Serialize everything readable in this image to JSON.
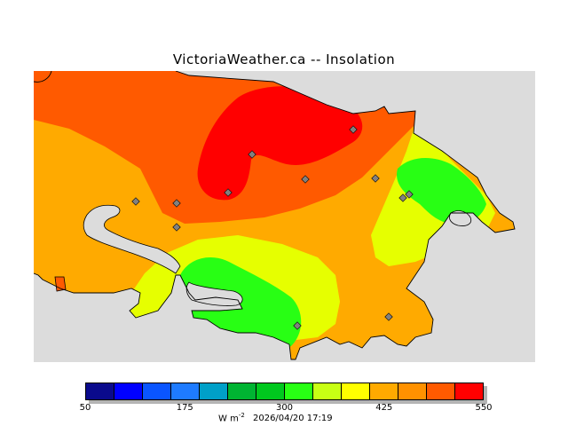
{
  "title": "VictoriaWeather.ca -- Insolation",
  "legend": {
    "colors": [
      "#0a0a8c",
      "#0000ff",
      "#0a55ff",
      "#1e7bff",
      "#00a0c8",
      "#00b432",
      "#00c81e",
      "#28ff14",
      "#c8ff14",
      "#ffff00",
      "#ffaa00",
      "#ff9100",
      "#ff5a00",
      "#ff0000"
    ],
    "ticks": [
      {
        "label": "50"
      },
      {
        "label": "175"
      },
      {
        "label": "300"
      },
      {
        "label": "425"
      },
      {
        "label": "550"
      }
    ]
  },
  "footer": {
    "units_base": "W m",
    "units_exp": "-2",
    "timestamp": "2026/04/20 17:19"
  },
  "map": {
    "background_color": "#dcdcdc",
    "contour_colors": {
      "orange_high": "#ff5a00",
      "red": "#ff0000",
      "orange": "#ffaa00",
      "yellow": "#e6ff00",
      "green": "#28ff14"
    },
    "station_marker_icon": "diamond-icon"
  }
}
